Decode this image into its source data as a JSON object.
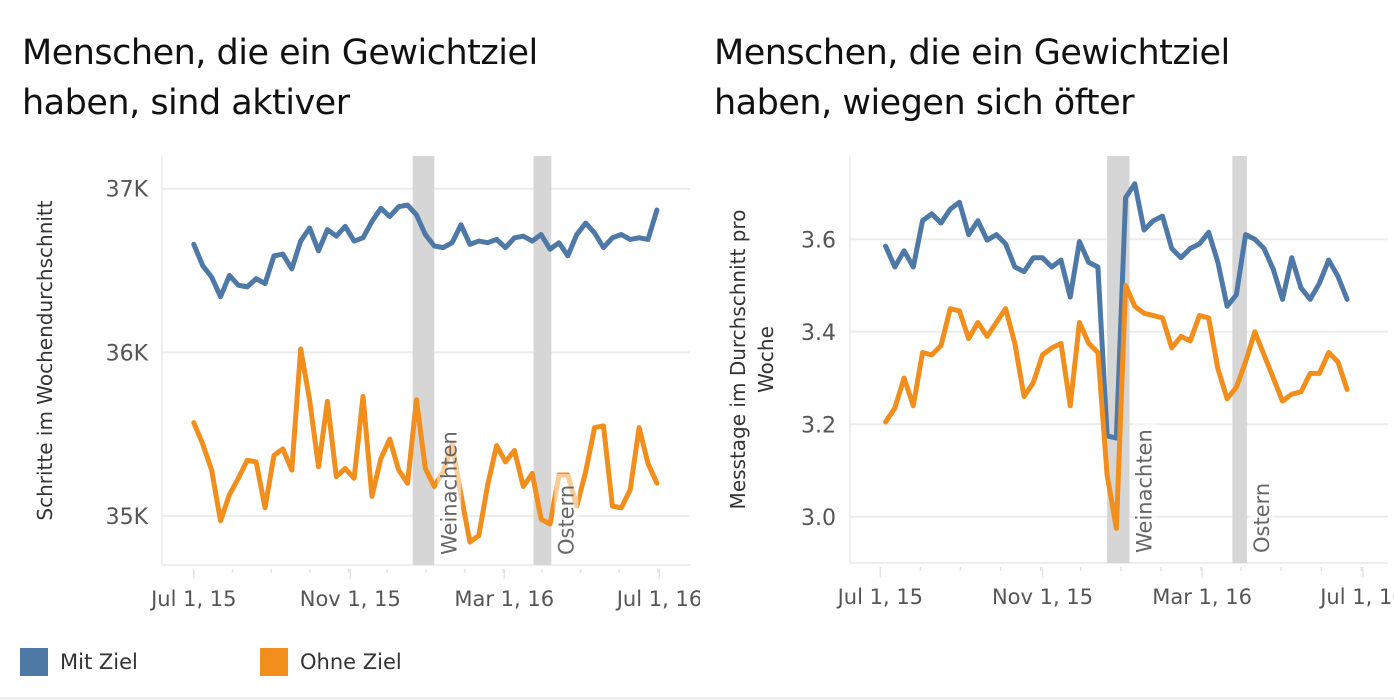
{
  "colors": {
    "mit_ziel": "#4e79a7",
    "ohne_ziel": "#f28e1c",
    "band": "#d6d6d6",
    "grid": "#ececec",
    "axis_text": "#555555"
  },
  "legend": [
    {
      "label": "Mit Ziel",
      "color": "#4e79a7"
    },
    {
      "label": "Ohne Ziel",
      "color": "#f28e1c"
    }
  ],
  "chart_data": [
    {
      "type": "line",
      "title": "Menschen, die ein Gewichtziel haben, sind aktiver",
      "title_lines": [
        "Menschen, die ein Gewichtziel",
        "haben, sind aktiver"
      ],
      "xlabel": "",
      "ylabel": "Schritte im Wochendurchschnitt",
      "ylim": [
        34.7,
        37.2
      ],
      "yticks": [
        35,
        36,
        37
      ],
      "ytick_labels": [
        "35K",
        "36K",
        "37K"
      ],
      "x_start": "2015-07-01",
      "x_step_days": 7,
      "xtick_labels": [
        "Jul 1, 15",
        "Nov 1, 15",
        "Mar 1, 16",
        "Jul 1, 16"
      ],
      "xtick_dates": [
        "2015-07-01",
        "2015-11-01",
        "2016-03-01",
        "2016-07-01"
      ],
      "xlim": [
        "2015-06-06",
        "2016-07-25"
      ],
      "grid": true,
      "bands": [
        {
          "label": "Weinachten",
          "from": "2015-12-20",
          "to": "2016-01-06"
        },
        {
          "label": "Ostern",
          "from": "2016-03-24",
          "to": "2016-04-07"
        }
      ],
      "series": [
        {
          "name": "Mit Ziel",
          "values": [
            36.66,
            36.53,
            36.46,
            36.34,
            36.47,
            36.41,
            36.4,
            36.45,
            36.42,
            36.59,
            36.6,
            36.51,
            36.68,
            36.76,
            36.62,
            36.75,
            36.71,
            36.77,
            36.68,
            36.7,
            36.8,
            36.88,
            36.83,
            36.89,
            36.9,
            36.84,
            36.72,
            36.65,
            36.64,
            36.67,
            36.78,
            36.66,
            36.68,
            36.67,
            36.69,
            36.64,
            36.7,
            36.71,
            36.68,
            36.72,
            36.63,
            36.67,
            36.59,
            36.72,
            36.79,
            36.73,
            36.64,
            36.7,
            36.72,
            36.69,
            36.7,
            36.69,
            36.87
          ]
        },
        {
          "name": "Ohne Ziel",
          "values": [
            35.57,
            35.44,
            35.28,
            34.97,
            35.13,
            35.23,
            35.34,
            35.33,
            35.05,
            35.37,
            35.41,
            35.28,
            36.02,
            35.71,
            35.3,
            35.7,
            35.24,
            35.29,
            35.23,
            35.73,
            35.12,
            35.35,
            35.47,
            35.28,
            35.2,
            35.71,
            35.29,
            35.18,
            35.27,
            35.44,
            35.13,
            34.84,
            34.88,
            35.19,
            35.43,
            35.33,
            35.4,
            35.18,
            35.26,
            34.98,
            34.95,
            35.25,
            35.25,
            35.06,
            35.27,
            35.54,
            35.55,
            35.06,
            35.05,
            35.16,
            35.54,
            35.32,
            35.2
          ]
        }
      ]
    },
    {
      "type": "line",
      "title": "Menschen, die ein Gewichtziel haben, wiegen sich öfter",
      "title_lines": [
        "Menschen, die ein Gewichtziel",
        "haben, wiegen sich öfter"
      ],
      "xlabel": "",
      "ylabel": "Messtage im Durchschnitt pro Woche",
      "ylabel_lines": [
        "Messtage im Durchschnitt pro",
        "Woche"
      ],
      "ylim": [
        2.9,
        3.78
      ],
      "yticks": [
        3.0,
        3.2,
        3.4,
        3.6
      ],
      "ytick_labels": [
        "3.0",
        "3.2",
        "3.4",
        "3.6"
      ],
      "x_start": "2015-07-05",
      "x_step_days": 7,
      "xtick_labels": [
        "Jul 1, 15",
        "Nov 1, 15",
        "Mar 1, 16",
        "Jul 1, 16"
      ],
      "xtick_dates": [
        "2015-07-01",
        "2015-11-01",
        "2016-03-01",
        "2016-07-01"
      ],
      "xlim": [
        "2015-06-08",
        "2016-07-20"
      ],
      "grid": true,
      "bands": [
        {
          "label": "Weinachten",
          "from": "2015-12-20",
          "to": "2016-01-06"
        },
        {
          "label": "Ostern",
          "from": "2016-03-24",
          "to": "2016-04-04"
        }
      ],
      "series": [
        {
          "name": "Mit Ziel",
          "values": [
            3.585,
            3.54,
            3.575,
            3.54,
            3.64,
            3.655,
            3.635,
            3.665,
            3.68,
            3.61,
            3.64,
            3.598,
            3.61,
            3.59,
            3.54,
            3.53,
            3.56,
            3.56,
            3.54,
            3.555,
            3.475,
            3.595,
            3.55,
            3.54,
            3.175,
            3.17,
            3.69,
            3.72,
            3.62,
            3.64,
            3.65,
            3.58,
            3.56,
            3.58,
            3.59,
            3.615,
            3.55,
            3.455,
            3.48,
            3.61,
            3.6,
            3.58,
            3.535,
            3.47,
            3.56,
            3.495,
            3.47,
            3.505,
            3.555,
            3.52,
            3.47
          ]
        },
        {
          "name": "Ohne Ziel",
          "values": [
            3.205,
            3.235,
            3.3,
            3.24,
            3.355,
            3.35,
            3.37,
            3.45,
            3.445,
            3.385,
            3.42,
            3.39,
            3.42,
            3.45,
            3.375,
            3.26,
            3.29,
            3.35,
            3.365,
            3.375,
            3.24,
            3.42,
            3.375,
            3.355,
            3.09,
            2.975,
            3.5,
            3.455,
            3.44,
            3.435,
            3.43,
            3.365,
            3.39,
            3.38,
            3.435,
            3.43,
            3.32,
            3.255,
            3.28,
            3.335,
            3.4,
            3.35,
            3.3,
            3.25,
            3.265,
            3.27,
            3.31,
            3.31,
            3.355,
            3.335,
            3.275
          ]
        }
      ]
    }
  ]
}
